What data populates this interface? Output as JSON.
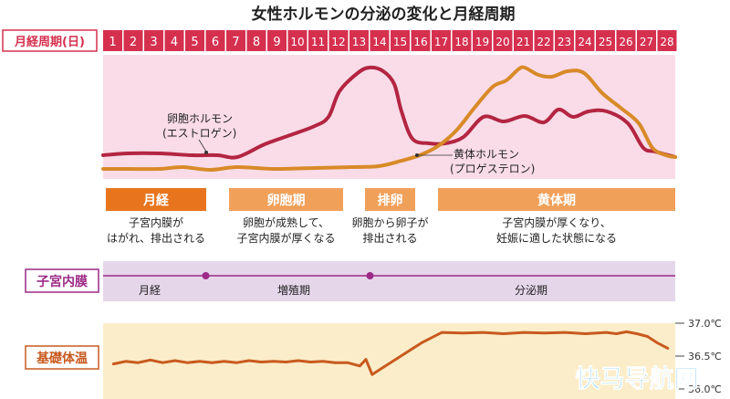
{
  "title": "女性ホルモンの分泌の変化と月経周期",
  "day_header": {
    "label": "月経周期(日)",
    "days": [
      "1",
      "2",
      "3",
      "4",
      "5",
      "6",
      "7",
      "8",
      "9",
      "10",
      "11",
      "12",
      "13",
      "14",
      "15",
      "16",
      "17",
      "18",
      "19",
      "20",
      "21",
      "22",
      "23",
      "24",
      "25",
      "26",
      "27",
      "28"
    ]
  },
  "hormones": {
    "estrogen": {
      "label_line1": "卵胞ホルモン",
      "label_line2": "(エストロゲン)",
      "color": "#b32542"
    },
    "progesterone": {
      "label_line1": "黄体ホルモン",
      "label_line2": "(プロゲステロン)",
      "color": "#d88a28"
    },
    "background": "#f9dce8"
  },
  "phases": [
    {
      "name": "月経",
      "desc_line1": "子宮内膜が",
      "desc_line2": "はがれ、排出される",
      "start_day": 1,
      "end_day": 5,
      "color": "#e8751e"
    },
    {
      "name": "卵胞期",
      "desc_line1": "卵胞が成熟して、",
      "desc_line2": "子宮内膜が厚くなる",
      "start_day": 7,
      "end_day": 11,
      "color": "#f1a05a"
    },
    {
      "name": "排卵",
      "desc_line1": "卵胞から卵子が",
      "desc_line2": "排出される",
      "start_day": 13,
      "end_day": 14,
      "color": "#f1a05a"
    },
    {
      "name": "黄体期",
      "desc_line1": "子宮内膜が厚くなり、",
      "desc_line2": "妊娠に適した状態になる",
      "start_day": 17,
      "end_day": 28,
      "color": "#f1a05a"
    }
  ],
  "endometrium": {
    "label": "子宮内膜",
    "stages": [
      "月経",
      "増殖期",
      "分泌期"
    ],
    "marker_days": [
      5.5,
      13.5
    ],
    "color": "#9c2a86",
    "background": "#e5d6ea"
  },
  "bbt": {
    "label": "基礎体温",
    "color": "#c85a1e",
    "background": "#fbedc9",
    "ticks": [
      "37.0℃",
      "36.5℃",
      "36.0℃"
    ],
    "range": [
      36.0,
      37.0
    ],
    "points": [
      [
        1.0,
        36.38
      ],
      [
        1.6,
        36.42
      ],
      [
        2.2,
        36.4
      ],
      [
        2.8,
        36.44
      ],
      [
        3.4,
        36.4
      ],
      [
        4.0,
        36.43
      ],
      [
        4.6,
        36.4
      ],
      [
        5.2,
        36.42
      ],
      [
        5.8,
        36.4
      ],
      [
        6.4,
        36.42
      ],
      [
        7.0,
        36.4
      ],
      [
        7.6,
        36.43
      ],
      [
        8.2,
        36.41
      ],
      [
        8.8,
        36.42
      ],
      [
        9.4,
        36.41
      ],
      [
        10.0,
        36.43
      ],
      [
        10.6,
        36.41
      ],
      [
        11.2,
        36.42
      ],
      [
        11.8,
        36.4
      ],
      [
        12.4,
        36.4
      ],
      [
        13.0,
        36.35
      ],
      [
        13.3,
        36.45
      ],
      [
        13.6,
        36.22
      ],
      [
        14.0,
        36.3
      ],
      [
        15.0,
        36.5
      ],
      [
        16.0,
        36.7
      ],
      [
        17.0,
        36.86
      ],
      [
        18.0,
        36.85
      ],
      [
        19.0,
        36.86
      ],
      [
        20.0,
        36.84
      ],
      [
        21.0,
        36.86
      ],
      [
        22.0,
        36.85
      ],
      [
        23.0,
        36.86
      ],
      [
        24.0,
        36.84
      ],
      [
        25.0,
        36.86
      ],
      [
        25.5,
        36.84
      ],
      [
        26.0,
        36.87
      ],
      [
        26.5,
        36.84
      ],
      [
        27.0,
        36.8
      ],
      [
        27.5,
        36.7
      ],
      [
        28.0,
        36.62
      ]
    ]
  },
  "watermark": "快马导航网"
}
